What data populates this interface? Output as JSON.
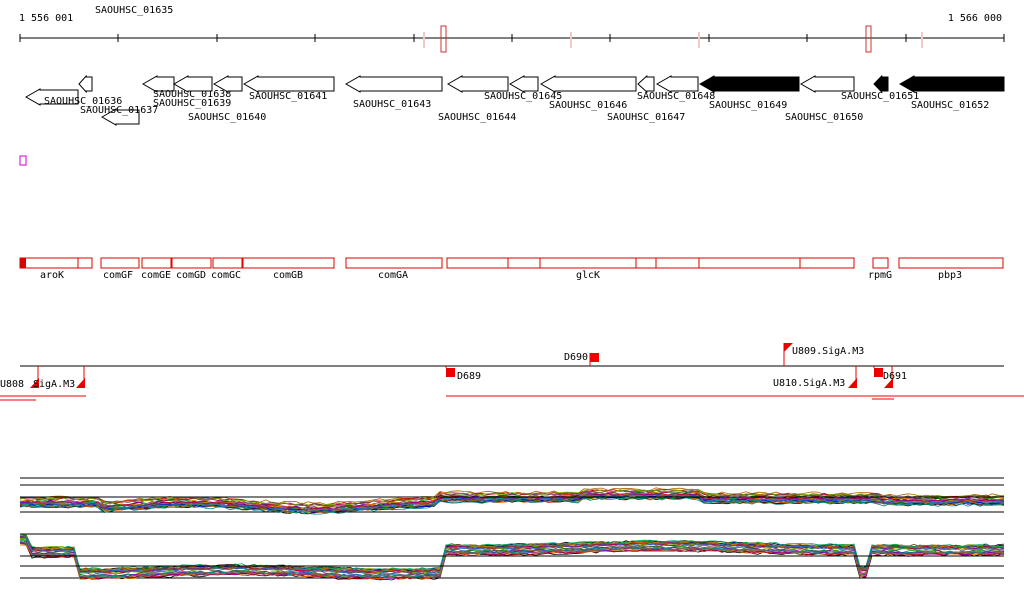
{
  "coords": {
    "start": "1 556 001",
    "end": "1 566 000"
  },
  "colors": {
    "ink": "#000000",
    "operon": "#dd0000",
    "promoter": "#ee0000",
    "tick_pink": "#f2c8c8",
    "marker": "#cc00cc"
  },
  "genes": [
    {
      "id": "SAOUHSC_01635",
      "dir": "-",
      "filled": false
    },
    {
      "id": "SAOUHSC_01636",
      "dir": "-",
      "filled": false
    },
    {
      "id": "SAOUHSC_01637",
      "dir": "-",
      "filled": false
    },
    {
      "id": "SAOUHSC_01638",
      "dir": "-",
      "filled": false
    },
    {
      "id": "SAOUHSC_01639",
      "dir": "-",
      "filled": false
    },
    {
      "id": "SAOUHSC_01640",
      "dir": "-",
      "filled": false
    },
    {
      "id": "SAOUHSC_01641",
      "dir": "-",
      "filled": false
    },
    {
      "id": "SAOUHSC_01643",
      "dir": "-",
      "filled": false
    },
    {
      "id": "SAOUHSC_01644",
      "dir": "-",
      "filled": false
    },
    {
      "id": "SAOUHSC_01645",
      "dir": "-",
      "filled": false
    },
    {
      "id": "SAOUHSC_01646",
      "dir": "-",
      "filled": false
    },
    {
      "id": "SAOUHSC_01647",
      "dir": "-",
      "filled": false
    },
    {
      "id": "SAOUHSC_01648",
      "dir": "-",
      "filled": false
    },
    {
      "id": "SAOUHSC_01649",
      "dir": "-",
      "filled": true
    },
    {
      "id": "SAOUHSC_01650",
      "dir": "-",
      "filled": false
    },
    {
      "id": "SAOUHSC_01651",
      "dir": "-",
      "filled": true
    },
    {
      "id": "SAOUHSC_01652",
      "dir": "-",
      "filled": true
    }
  ],
  "operons": [
    {
      "name": "aroK"
    },
    {
      "name": "comGF"
    },
    {
      "name": "comGE"
    },
    {
      "name": "comGD"
    },
    {
      "name": "comGC"
    },
    {
      "name": "comGB"
    },
    {
      "name": "comGA"
    },
    {
      "name": "glcK"
    },
    {
      "name": "rpmG"
    },
    {
      "name": "pbp3"
    }
  ],
  "promoters": [
    {
      "label": "U808"
    },
    {
      "label": "SigA.M3"
    },
    {
      "label": "D689"
    },
    {
      "label": "D690"
    },
    {
      "label": "U809.SigA.M3"
    },
    {
      "label": "U810.SigA.M3"
    },
    {
      "label": "D691"
    }
  ]
}
